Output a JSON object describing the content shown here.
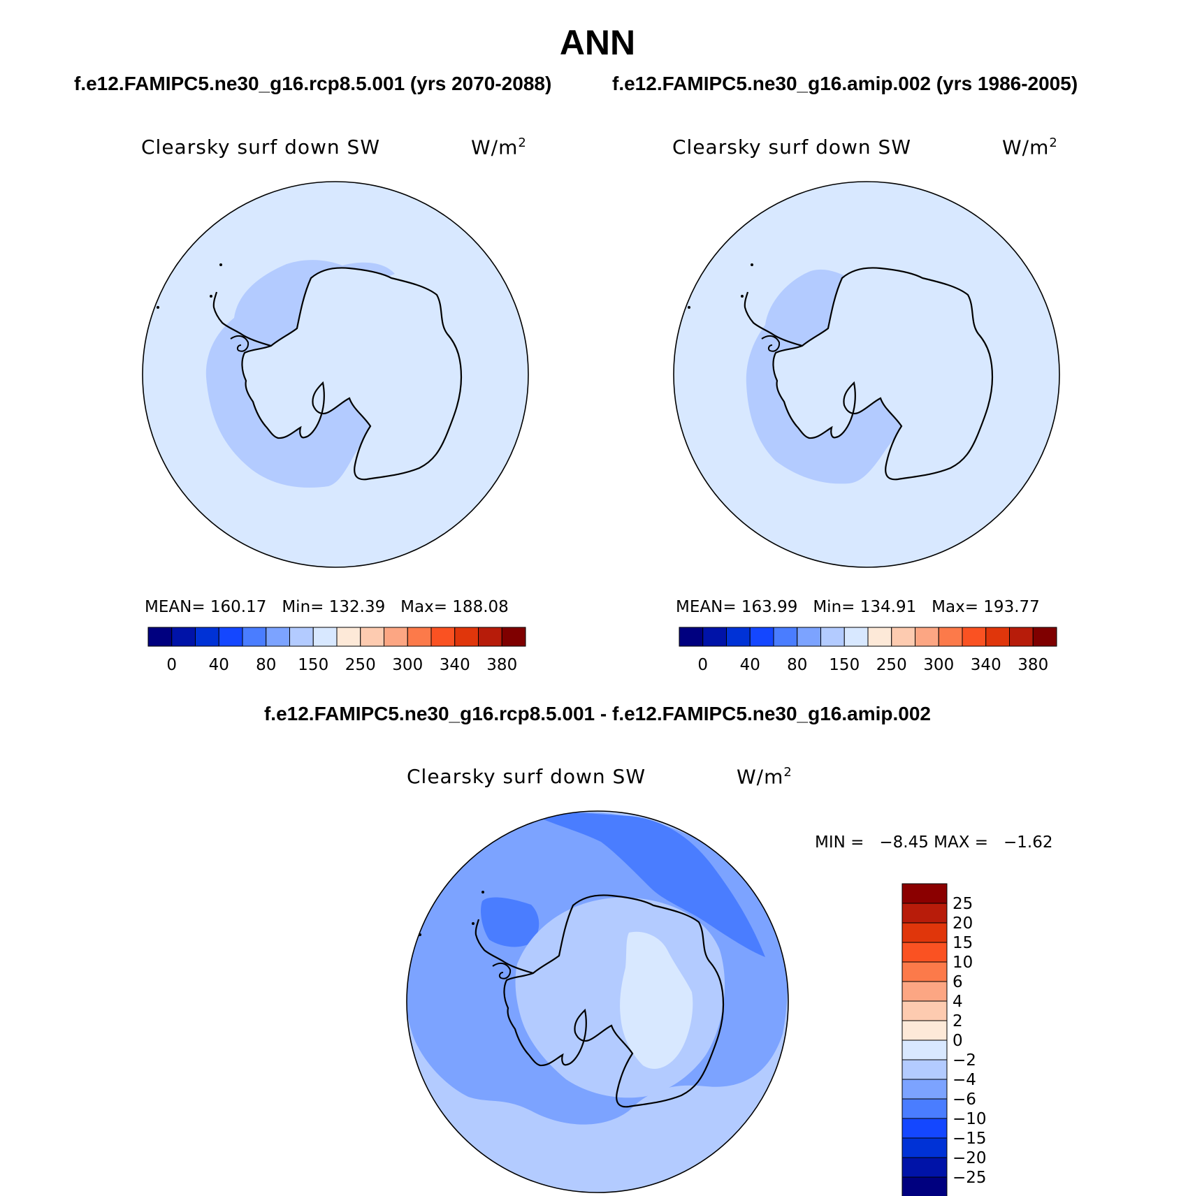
{
  "title": "ANN",
  "panels": [
    {
      "case_label": "f.e12.FAMIPC5.ne30_g16.rcp8.5.001 (yrs 2070-2088)",
      "variable": "Clearsky surf down SW",
      "units_base": "W/m",
      "units_exp": "2",
      "stats": {
        "mean_label": "MEAN=",
        "mean": "160.17",
        "min_label": "Min=",
        "min": "132.39",
        "max_label": "Max=",
        "max": "188.08"
      }
    },
    {
      "case_label": "f.e12.FAMIPC5.ne30_g16.amip.002 (yrs 1986-2005)",
      "variable": "Clearsky surf down SW",
      "units_base": "W/m",
      "units_exp": "2",
      "stats": {
        "mean_label": "MEAN=",
        "mean": "163.99",
        "min_label": "Min=",
        "min": "134.91",
        "max_label": "Max=",
        "max": "193.77"
      }
    }
  ],
  "colorbar_main": {
    "colors": [
      "#00007f",
      "#0013a8",
      "#0032d6",
      "#1447ff",
      "#4a7dff",
      "#7ca3ff",
      "#b3cbff",
      "#d8e8ff",
      "#fde9d8",
      "#fdcbb0",
      "#fca683",
      "#fc7a4a",
      "#fa5222",
      "#e0360b",
      "#b71c0a",
      "#7f0000"
    ],
    "labels": [
      "0",
      "40",
      "80",
      "150",
      "250",
      "300",
      "340",
      "380"
    ]
  },
  "difference": {
    "title": "f.e12.FAMIPC5.ne30_g16.rcp8.5.001 - f.e12.FAMIPC5.ne30_g16.amip.002",
    "variable": "Clearsky surf down SW",
    "units_base": "W/m",
    "units_exp": "2",
    "stats": {
      "min_label": "MIN =",
      "min": "−8.45",
      "max_label": "MAX =",
      "max": "−1.62"
    }
  },
  "colorbar_diff": {
    "colors_top_to_bottom": [
      "#8b0000",
      "#b81c0a",
      "#e0360b",
      "#fa5222",
      "#fc7a4a",
      "#fca683",
      "#fdcbb0",
      "#fde9d8",
      "#d8e8ff",
      "#b3cbff",
      "#7ca3ff",
      "#4a7dff",
      "#1447ff",
      "#0032d6",
      "#0013a8",
      "#00007f"
    ],
    "labels_top_to_bottom": [
      "25",
      "20",
      "15",
      "10",
      "6",
      "4",
      "2",
      "0",
      "−2",
      "−4",
      "−6",
      "−10",
      "−15",
      "−20",
      "−25"
    ]
  },
  "map_colors": {
    "ocean_light": "#d8e8ff",
    "band_mid": "#b3cbff",
    "band_darker": "#7ca3ff",
    "band_darkest": "#4a7dff",
    "coast": "#000000"
  }
}
